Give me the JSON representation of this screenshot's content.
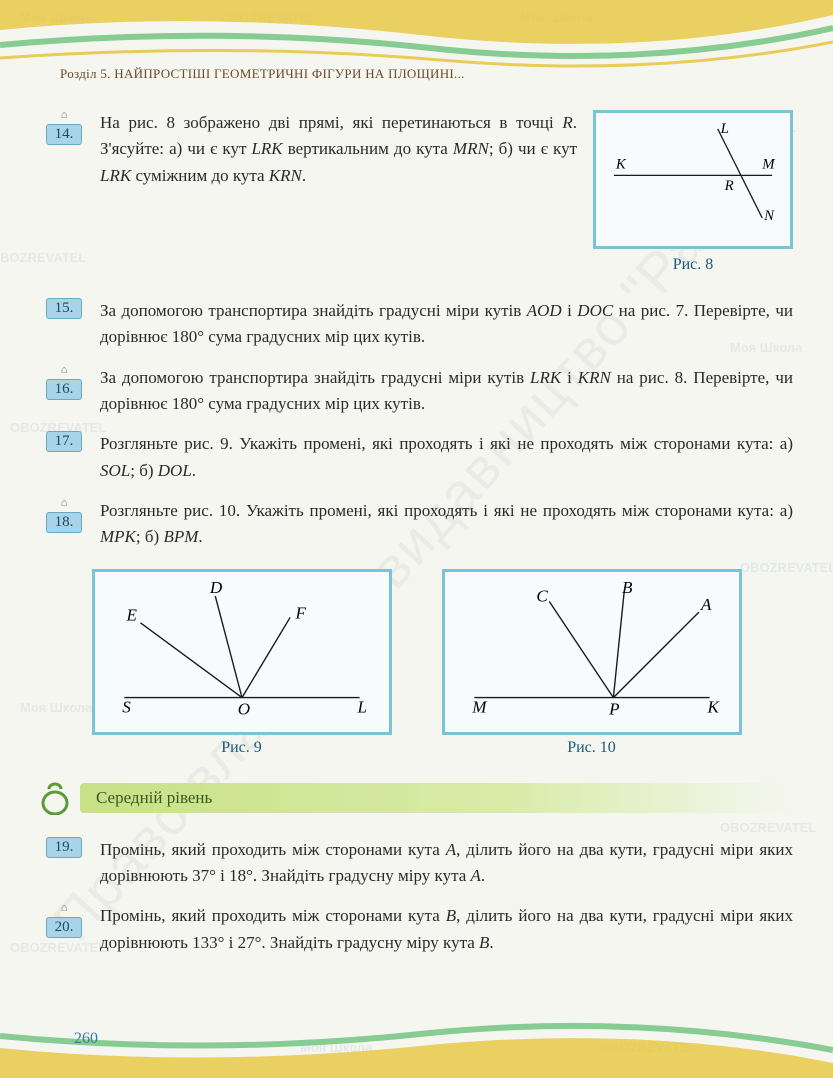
{
  "chapter": "Розділ 5. НАЙПРОСТІШІ ГЕОМЕТРИЧНІ ФІГУРИ НА ПЛОЩИНІ...",
  "page_number": "260",
  "watermark_text": "OBOZREVATEL",
  "watermark_text2": "Моя Школа",
  "diagonal_watermark": "Право власності видавництво \"Ранок\"",
  "level_label": "Середній рівень",
  "problems": {
    "p14": {
      "num": "14.",
      "has_house": true,
      "text_html": "На рис. 8 зображено дві прямі, які перетинаються в точці <i>R</i>. З'ясуйте: а) чи є кут <i>LRK</i> вертикальним до кута <i>MRN</i>; б) чи є кут <i>LRK</i> суміжним до кута <i>KRN</i>."
    },
    "p15": {
      "num": "15.",
      "has_house": false,
      "text_html": "За допомогою транспортира знайдіть градусні міри кутів <i>AOD</i> і <i>DOC</i> на рис. 7. Перевірте, чи дорівнює 180° сума градусних мір цих кутів."
    },
    "p16": {
      "num": "16.",
      "has_house": true,
      "text_html": "За допомогою транспортира знайдіть градусні міри кутів <i>LRK</i> і <i>KRN</i> на рис. 8. Перевірте, чи дорівнює 180° сума градусних мір цих кутів."
    },
    "p17": {
      "num": "17.",
      "has_house": false,
      "text_html": "Розгляньте рис. 9. Укажіть промені, які проходять і які не проходять між сторонами кута: а) <i>SOL</i>; б) <i>DOL</i>."
    },
    "p18": {
      "num": "18.",
      "has_house": true,
      "text_html": "Розгляньте рис. 10. Укажіть промені, які проходять і які не проходять між сторонами кута: а) <i>MPK</i>; б) <i>BPM</i>."
    },
    "p19": {
      "num": "19.",
      "has_house": false,
      "text_html": "Промінь, який проходить між сторонами кута <i>A</i>, ділить його на два кути, градусні міри яких дорівнюють 37° і 18°. Знайдіть градусну міру кута <i>A</i>."
    },
    "p20": {
      "num": "20.",
      "has_house": true,
      "text_html": "Промінь, який проходить між сторонами кута <i>B</i>, ділить його на два кути, градусні міри яких дорівнюють 133° і 27°. Знайдіть градусну міру кута <i>B</i>."
    }
  },
  "figures": {
    "fig8": {
      "caption": "Рис. 8",
      "labels": {
        "K": "K",
        "L": "L",
        "M": "M",
        "N": "N",
        "R": "R"
      },
      "stroke": "#1a1a1a",
      "frame": "#7ac4d8",
      "bg": "#f8fbfc"
    },
    "fig9": {
      "caption": "Рис. 9",
      "labels": {
        "S": "S",
        "O": "O",
        "L": "L",
        "D": "D",
        "E": "E",
        "F": "F"
      },
      "stroke": "#1a1a1a"
    },
    "fig10": {
      "caption": "Рис. 10",
      "labels": {
        "M": "M",
        "P": "P",
        "K": "K",
        "A": "A",
        "B": "B",
        "C": "C"
      },
      "stroke": "#1a1a1a"
    }
  },
  "colors": {
    "badge_bg": "#a8d4e8",
    "badge_border": "#6aa8c8",
    "header_line1": "#e8c848",
    "header_line2": "#7ac888",
    "level_bg": "#c8e088",
    "kettle": "#5a9a3a"
  }
}
